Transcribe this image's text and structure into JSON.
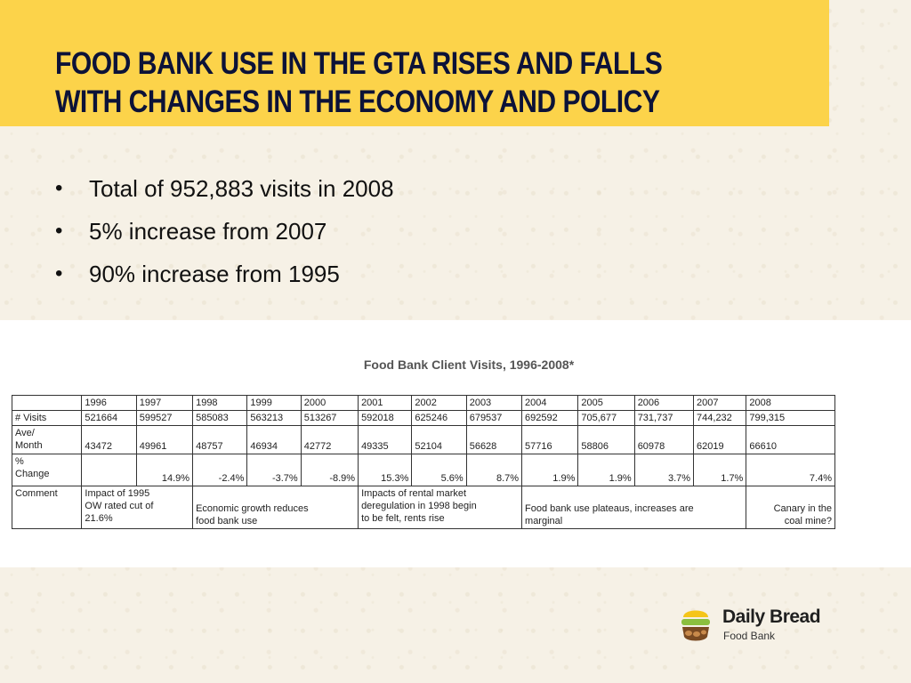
{
  "slide": {
    "title_line1": "FOOD BANK USE IN THE GTA RISES AND FALLS",
    "title_line2": "WITH CHANGES IN THE ECONOMY AND POLICY",
    "bullets": [
      "Total of 952,883 visits in 2008",
      "5% increase from 2007",
      "90% increase from 1995"
    ],
    "bullet_glyph": "•"
  },
  "table": {
    "title": "Food Bank Client Visits, 1996-2008*",
    "years": [
      "1996",
      "1997",
      "1998",
      "1999",
      "2000",
      "2001",
      "2002",
      "2003",
      "2004",
      "2005",
      "2006",
      "2007",
      "2008"
    ],
    "rows": {
      "visits": {
        "label": "# Visits",
        "values": [
          "521664",
          "599527",
          "585083",
          "563213",
          "513267",
          "592018",
          "625246",
          "679537",
          "692592",
          "705,677",
          "731,737",
          "744,232",
          "799,315"
        ]
      },
      "ave_month": {
        "label": "Ave/\nMonth",
        "values": [
          "43472",
          "49961",
          "48757",
          "46934",
          "42772",
          "49335",
          "52104",
          "56628",
          "57716",
          "58806",
          "60978",
          "62019",
          "66610"
        ]
      },
      "change": {
        "label": "%\nChange",
        "values": [
          "",
          "14.9%",
          "-2.4%",
          "-3.7%",
          "-8.9%",
          "15.3%",
          "5.6%",
          "8.7%",
          "1.9%",
          "1.9%",
          "3.7%",
          "1.7%",
          "7.4%"
        ]
      },
      "comment": {
        "label": "Comment",
        "groups": [
          "Impact of 1995\nOW rated cut of\n21.6%",
          "Economic  growth  reduces\nfood bank use",
          "Impacts of rental market\nderegulation in 1998 begin\nto be felt, rents rise",
          "Food bank use plateaus, increases are\nmarginal",
          "Canary in the\ncoal mine?"
        ]
      }
    }
  },
  "logo": {
    "name": "Daily Bread",
    "subtitle": "Food Bank",
    "icon": "bread-basket-icon",
    "colors": {
      "green": "#8bbf3f",
      "yellow": "#f5c51a",
      "brown": "#7a4a22"
    }
  },
  "colors": {
    "title_band": "#fcd34a",
    "title_text": "#0c1238",
    "background": "#f6f1e6"
  }
}
